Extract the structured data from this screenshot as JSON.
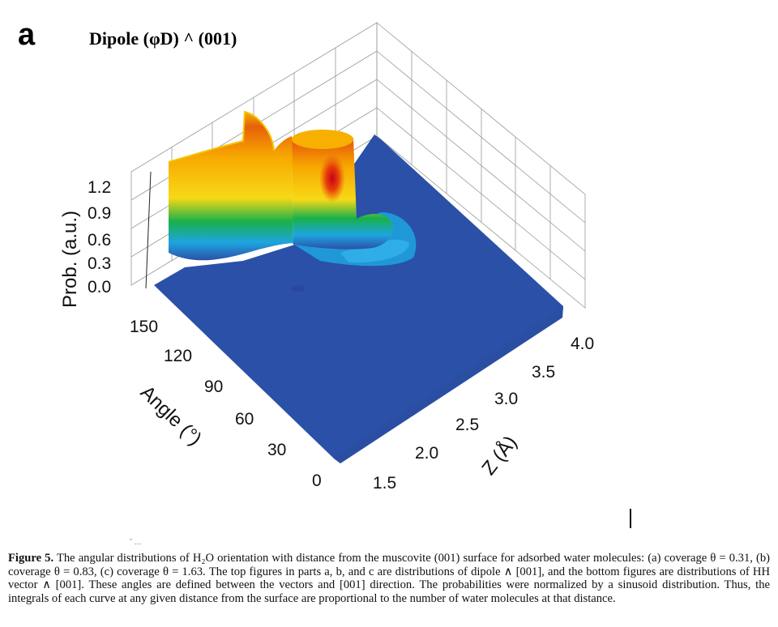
{
  "figure": {
    "panel_letter": "a",
    "panel_title": "Dipole (φD) ^ (001)"
  },
  "chart_data": {
    "type": "surface3d",
    "title": "Dipole (φD) ^ (001)",
    "zlabel": "Prob. (a.u.)",
    "ylabel": "Angle (°)",
    "xlabel": "Z (Å)",
    "z_ticks": [
      "0.0",
      "0.3",
      "0.6",
      "0.9",
      "1.2"
    ],
    "y_ticks": [
      "0",
      "30",
      "60",
      "90",
      "120",
      "150"
    ],
    "x_ticks": [
      "1.5",
      "2.0",
      "2.5",
      "3.0",
      "3.5",
      "4.0"
    ],
    "zlim": [
      0,
      1.2
    ],
    "ylim": [
      0,
      180
    ],
    "xlim": [
      1.3,
      4.1
    ],
    "colormap": [
      "#2b50a8",
      "#1ea5e0",
      "#18b04a",
      "#f7d917",
      "#f7a800",
      "#e8600a",
      "#c8001a"
    ],
    "peaks": [
      {
        "z_distance": 1.35,
        "angle": 90,
        "prob": 1.2
      },
      {
        "z_distance": 1.8,
        "angle": 115,
        "prob": 1.25
      }
    ]
  },
  "caption": {
    "label": "Figure 5.",
    "text": "The angular distributions of H₂O orientation with distance from the muscovite (001) surface for adsorbed water molecules: (a) coverage θ = 0.31, (b) coverage θ = 0.83, (c) coverage θ = 1.63. The top figures in parts a, b, and c are distributions of dipole ∧ [001], and the bottom figures are distributions of HH vector ∧ [001]. These angles are defined between the vectors and [001] direction. The probabilities were normalized by a sinusoid distribution. Thus, the integrals of each curve at any given distance from the surface are proportional to the number of water molecules at that distance."
  }
}
